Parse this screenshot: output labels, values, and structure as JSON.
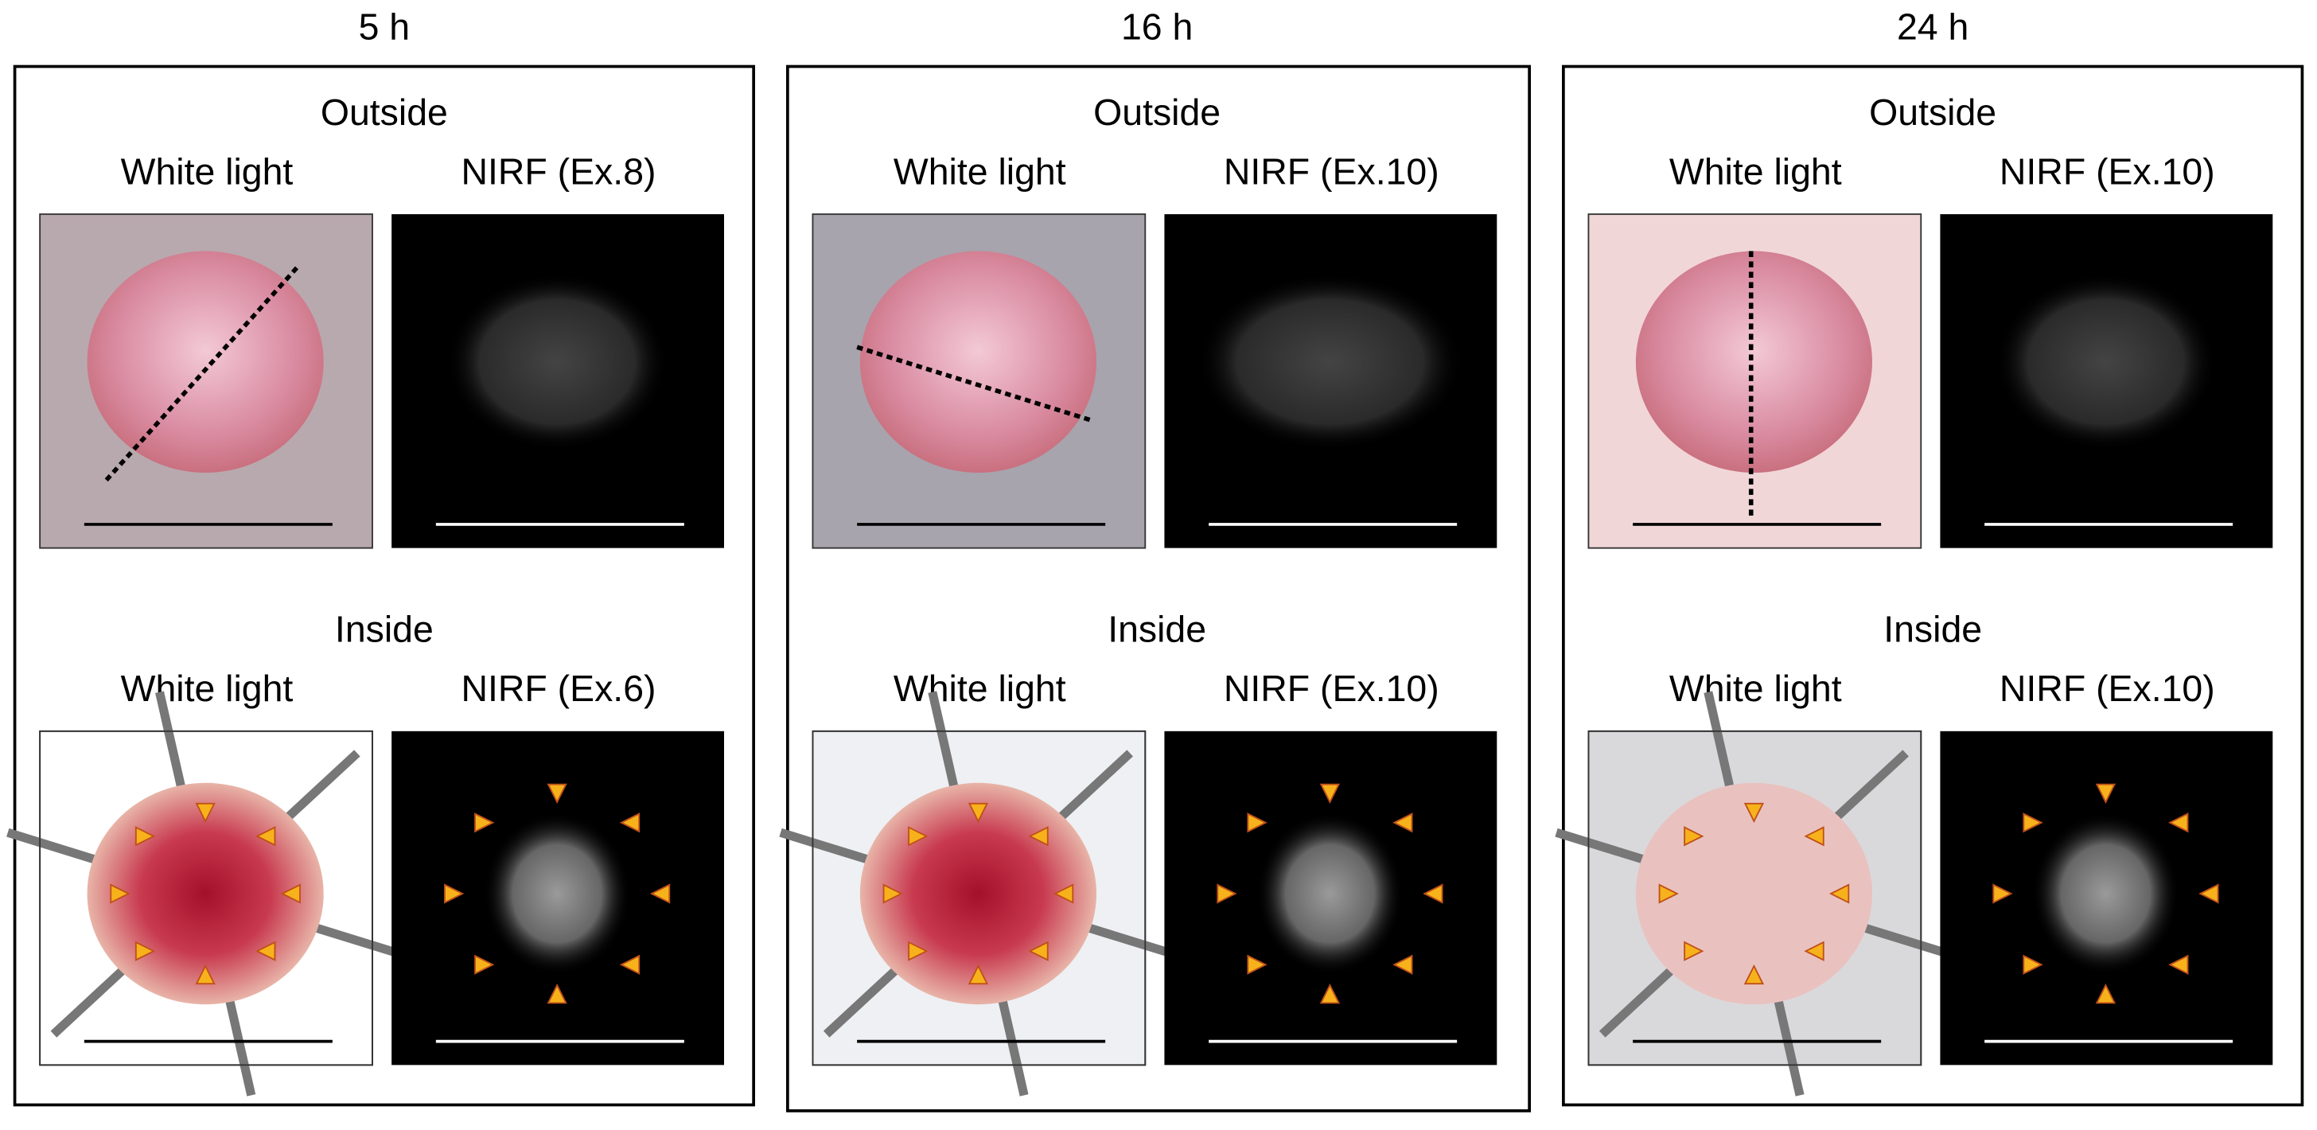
{
  "panels": [
    {
      "time": "5 h",
      "outside": {
        "heading": "Outside",
        "white_light": "White light",
        "nirf": "NIRF (Ex.8)"
      },
      "inside": {
        "heading": "Inside",
        "white_light": "White light",
        "nirf": "NIRF (Ex.6)"
      }
    },
    {
      "time": "16 h",
      "outside": {
        "heading": "Outside",
        "white_light": "White light",
        "nirf": "NIRF (Ex.10)"
      },
      "inside": {
        "heading": "Inside",
        "white_light": "White light",
        "nirf": "NIRF (Ex.10)"
      }
    },
    {
      "time": "24 h",
      "outside": {
        "heading": "Outside",
        "white_light": "White light",
        "nirf": "NIRF (Ex.10)"
      },
      "inside": {
        "heading": "Inside",
        "white_light": "White light",
        "nirf": "NIRF (Ex.10)"
      }
    }
  ]
}
